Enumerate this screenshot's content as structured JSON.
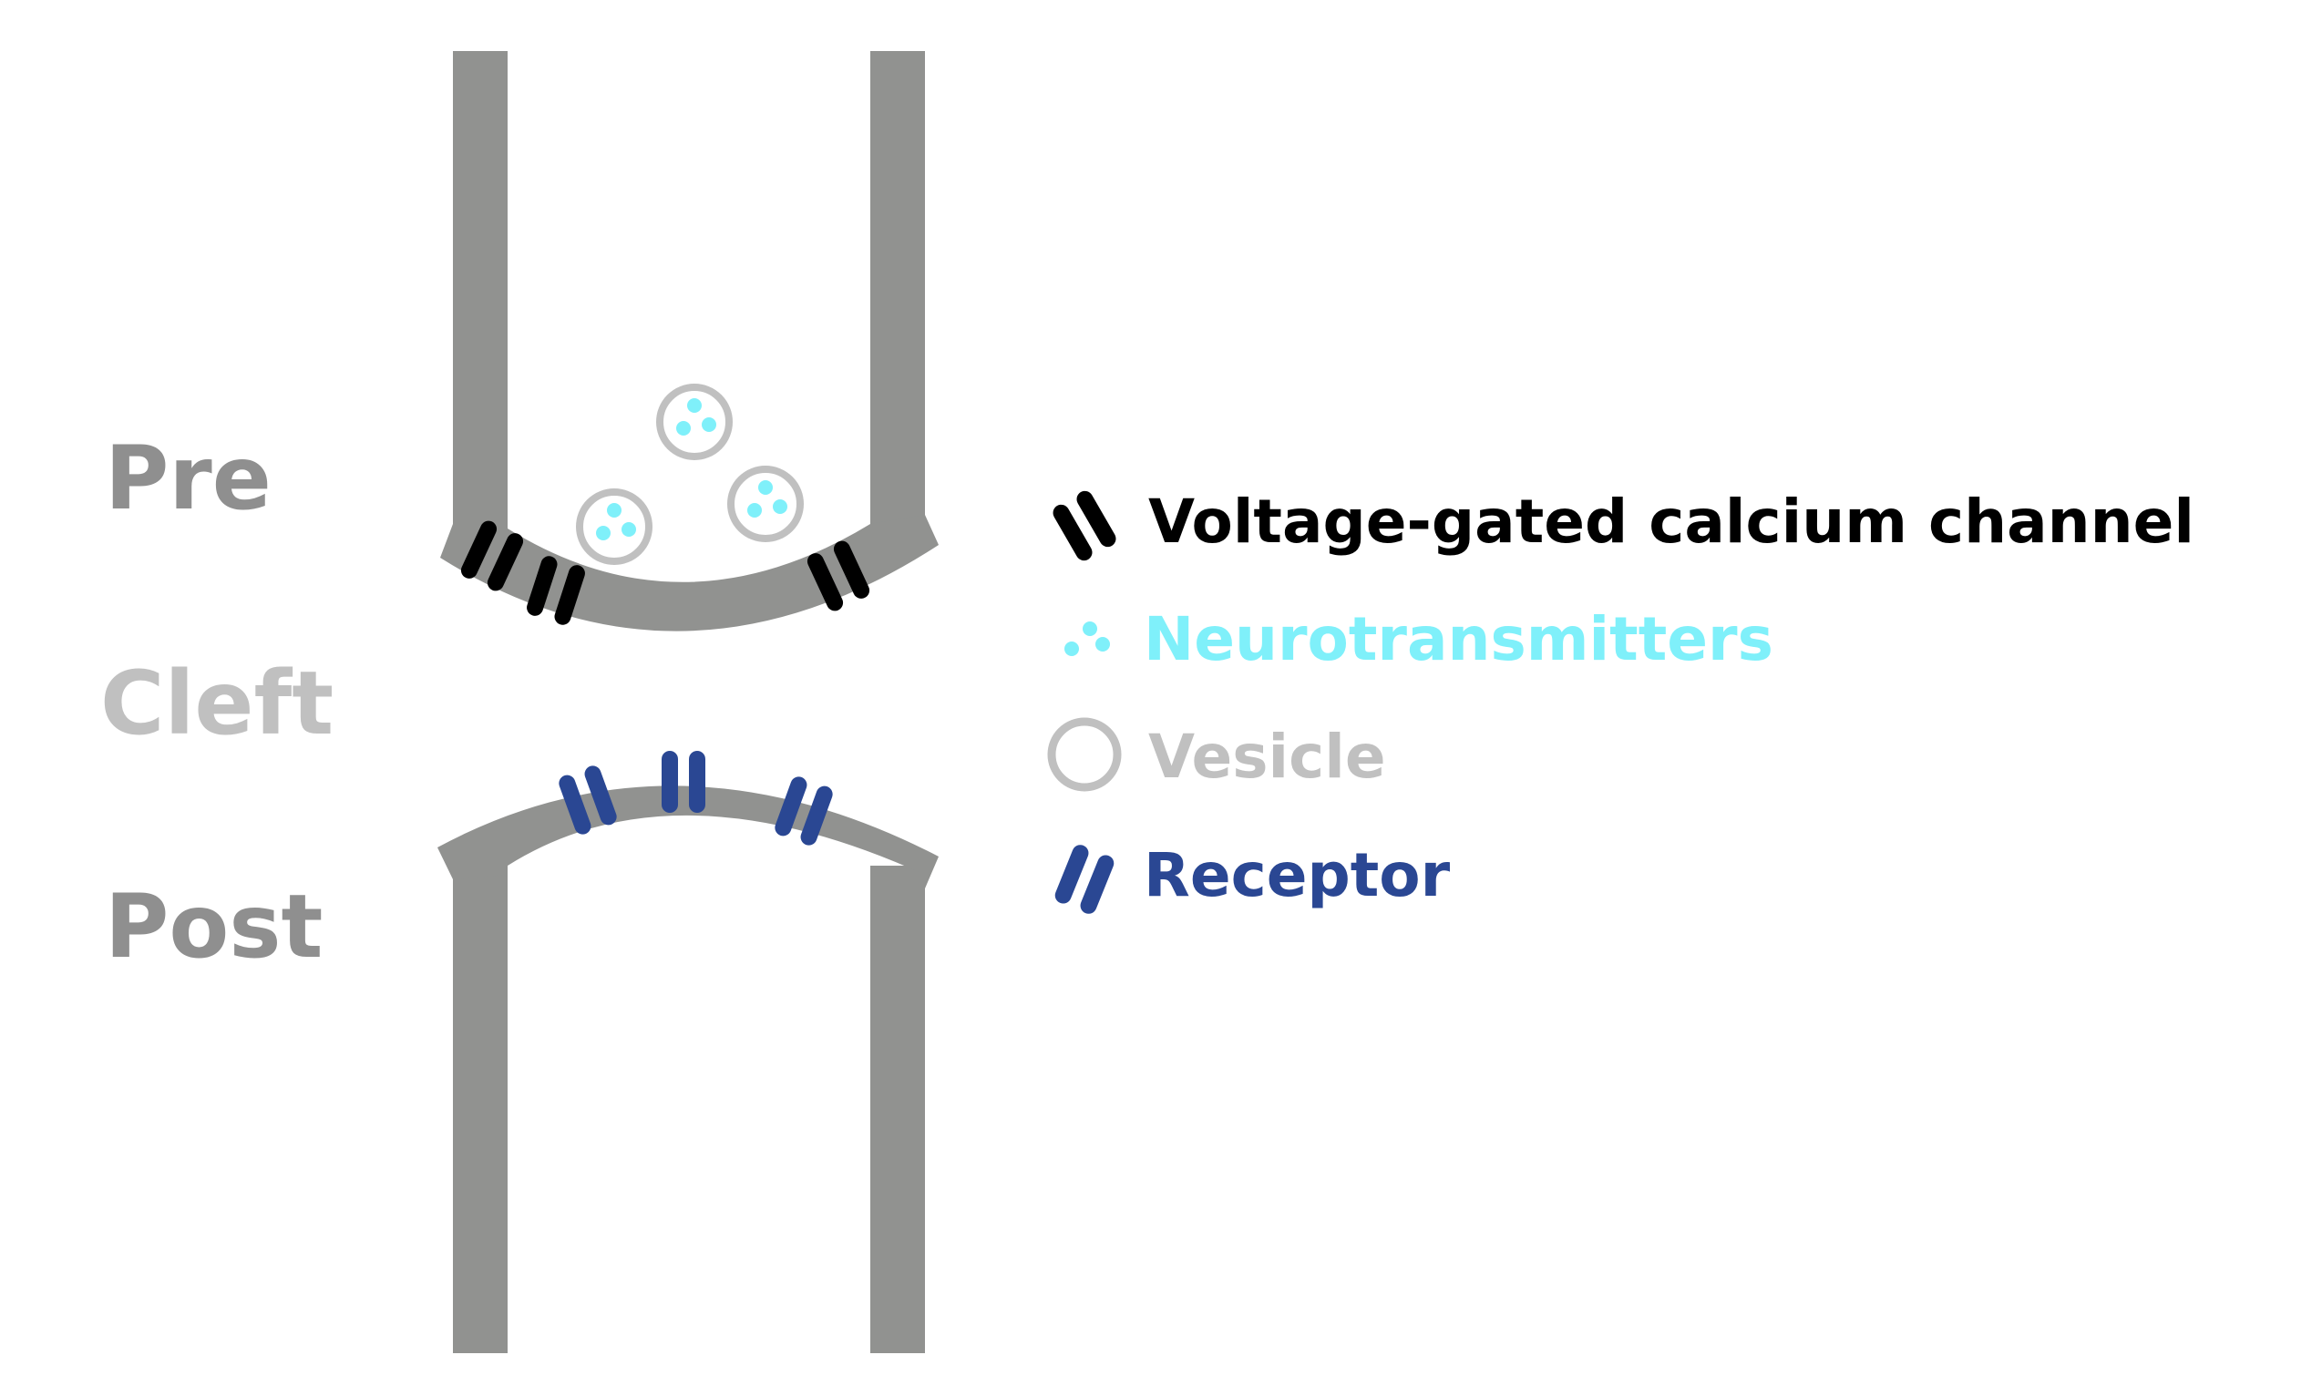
{
  "regions": {
    "pre": "Pre",
    "cleft": "Cleft",
    "post": "Post"
  },
  "legend": {
    "calcium_channel": "Voltage-gated calcium channel",
    "neurotransmitters": "Neurotransmitters",
    "vesicle": "Vesicle",
    "receptor": "Receptor"
  },
  "colors": {
    "membrane": "#919290",
    "calcium_channel": "#000000",
    "neurotransmitter": "#7ff0fa",
    "vesicle": "#c0c0c0",
    "receptor": "#2a4793",
    "pre_label": "#8f8f8f",
    "cleft_label": "#c0c0c0",
    "post_label": "#8f8f8f"
  },
  "icons": {
    "calcium_channel": "calcium-channel-icon",
    "neurotransmitters": "neurotransmitter-dots-icon",
    "vesicle": "vesicle-ring-icon",
    "receptor": "receptor-icon"
  }
}
